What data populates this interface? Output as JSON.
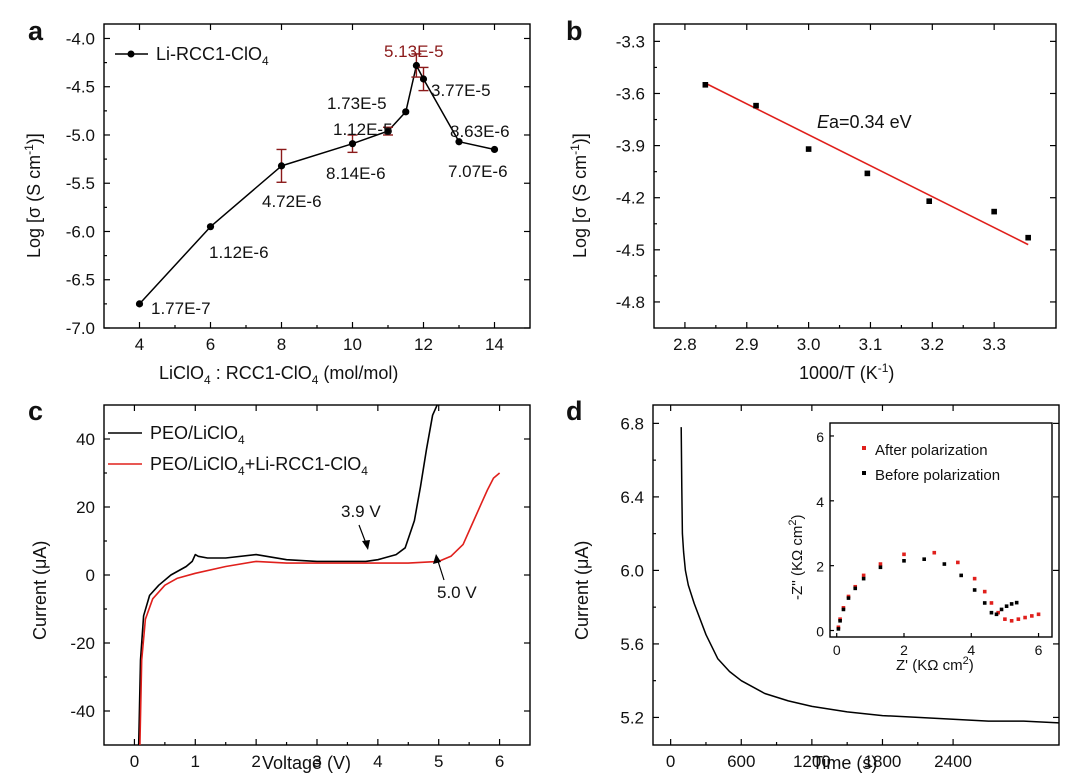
{
  "chart_data": [
    {
      "panel": "a",
      "type": "line",
      "xlabel": "LiClO",
      "xlabel_sub": "4",
      "xlabel_rest": " : RCC1-ClO",
      "xlabel_sub2": "4",
      "xlabel_tail": " (mol/mol)",
      "ylabel": "Log [σ (S cm",
      "ylabel_sup": "-1",
      "ylabel_tail": ")]",
      "xlim": [
        3,
        15
      ],
      "ylim": [
        -7.0,
        -3.85
      ],
      "xticks": [
        4,
        6,
        8,
        10,
        12,
        14
      ],
      "yticks": [
        -7.0,
        -6.5,
        -6.0,
        -5.5,
        -5.0,
        -4.5,
        -4.0
      ],
      "ytick_labels": [
        "-7.0",
        "-6.5",
        "-6.0",
        "-5.5",
        "-5.0",
        "-4.5",
        "-4.0"
      ],
      "legend": "Li-RCC1-ClO",
      "legend_sub": "4",
      "legend_position": "top-left",
      "highlight_color": "#8b1a1a",
      "series": [
        {
          "name": "Li-RCC1-ClO4",
          "x": [
            4,
            6,
            8,
            10,
            11,
            11.5,
            11.8,
            12,
            13,
            14
          ],
          "y": [
            -6.75,
            -5.95,
            -5.32,
            -5.09,
            -4.96,
            -4.76,
            -4.28,
            -4.42,
            -5.07,
            -5.15
          ],
          "errors": [
            0,
            0,
            0.17,
            0.09,
            0.04,
            0,
            0.12,
            0.12,
            0,
            0
          ]
        }
      ],
      "annotations": [
        "1.77E-7",
        "1.12E-6",
        "4.72E-6",
        "8.14E-6",
        "1.12E-5",
        "1.73E-5",
        "5.13E-5",
        "3.77E-5",
        "8.63E-6",
        "7.07E-6"
      ]
    },
    {
      "panel": "b",
      "type": "scatter",
      "xlabel": "1000/T (K",
      "xlabel_sup": "-1",
      "xlabel_tail": ")",
      "ylabel": "Log [σ (S cm",
      "ylabel_sup": "-1",
      "ylabel_tail": ")]",
      "xlim": [
        2.75,
        3.4
      ],
      "ylim": [
        -4.95,
        -3.2
      ],
      "xticks": [
        2.8,
        2.9,
        3.0,
        3.1,
        3.2,
        3.3
      ],
      "xtick_labels": [
        "2.8",
        "2.9",
        "3.0",
        "3.1",
        "3.2",
        "3.3"
      ],
      "yticks": [
        -4.8,
        -4.5,
        -4.2,
        -3.9,
        -3.6,
        -3.3
      ],
      "ytick_labels": [
        "-4.8",
        "-4.5",
        "-4.2",
        "-3.9",
        "-3.6",
        "-3.3"
      ],
      "points": {
        "x": [
          2.833,
          2.915,
          3.0,
          3.095,
          3.195,
          3.3,
          3.355
        ],
        "y": [
          -3.55,
          -3.67,
          -3.92,
          -4.06,
          -4.22,
          -4.28,
          -4.43
        ]
      },
      "fit": {
        "x": [
          2.833,
          3.355
        ],
        "y": [
          -3.54,
          -4.47
        ],
        "color": "#e0201c"
      },
      "annotation_italic": "E",
      "annotation": "a=0.34 eV"
    },
    {
      "panel": "c",
      "type": "line",
      "xlabel": "Voltage (V)",
      "ylabel": "Current (μA)",
      "xlim": [
        -0.5,
        6.5
      ],
      "ylim": [
        -50,
        50
      ],
      "xticks": [
        0,
        1,
        2,
        3,
        4,
        5,
        6
      ],
      "yticks": [
        -40,
        -20,
        0,
        20,
        40
      ],
      "series": [
        {
          "name": "PEO/LiClO4",
          "legend_text": "PEO/LiClO",
          "legend_sub": "4",
          "color": "#000000",
          "x": [
            0.07,
            0.1,
            0.15,
            0.25,
            0.4,
            0.6,
            0.85,
            0.95,
            1.0,
            1.05,
            1.2,
            1.5,
            2.0,
            2.5,
            3.0,
            3.5,
            3.8,
            4.0,
            4.3,
            4.45,
            4.6,
            4.7,
            4.8,
            4.9,
            5.0
          ],
          "y": [
            -50,
            -25,
            -12,
            -6,
            -3,
            0,
            2.5,
            4,
            6,
            5.5,
            5,
            5,
            6,
            4.5,
            4,
            4,
            4,
            4.5,
            6,
            8,
            16,
            26,
            37,
            47,
            51
          ]
        },
        {
          "name": "PEO/LiClO4+Li-RCC1-ClO4",
          "legend_text": "PEO/LiClO",
          "legend_sub": "4",
          "legend_rest": "+Li-RCC1-ClO",
          "legend_sub2": "4",
          "color": "#e0201c",
          "x": [
            0.09,
            0.12,
            0.18,
            0.3,
            0.5,
            0.7,
            1.0,
            1.5,
            2.0,
            2.5,
            3.0,
            3.5,
            4.0,
            4.5,
            5.0,
            5.2,
            5.4,
            5.55,
            5.7,
            5.8,
            5.9,
            6.0
          ],
          "y": [
            -50,
            -25,
            -13,
            -7,
            -3,
            -1,
            0.5,
            2.5,
            4,
            3.5,
            3.5,
            3.5,
            3.5,
            3.5,
            4,
            5.5,
            9,
            15,
            21,
            25,
            28.5,
            30
          ]
        }
      ],
      "annotations": [
        "3.9 V",
        "5.0 V"
      ],
      "legend_position": "top-left"
    },
    {
      "panel": "d",
      "type": "line",
      "xlabel": "Time (s)",
      "ylabel": "Current (μA)",
      "xlim": [
        -150,
        3300
      ],
      "ylim": [
        5.05,
        6.9
      ],
      "xticks": [
        0,
        600,
        1200,
        1800,
        2400
      ],
      "yticks": [
        5.2,
        5.6,
        6.0,
        6.4,
        6.8
      ],
      "ytick_labels": [
        "5.2",
        "5.6",
        "6.0",
        "6.4",
        "6.8"
      ],
      "series": [
        {
          "name": "current",
          "color": "#000000",
          "x": [
            90,
            95,
            100,
            110,
            125,
            150,
            200,
            300,
            400,
            500,
            600,
            800,
            1000,
            1200,
            1500,
            1800,
            2100,
            2400,
            2700,
            3000,
            3300
          ],
          "y": [
            6.78,
            6.45,
            6.2,
            6.1,
            6.0,
            5.92,
            5.82,
            5.65,
            5.52,
            5.45,
            5.4,
            5.33,
            5.29,
            5.26,
            5.23,
            5.21,
            5.2,
            5.19,
            5.18,
            5.18,
            5.17
          ]
        }
      ],
      "inset": {
        "type": "scatter",
        "xlabel": "Z' (KΩ cm",
        "xlabel_sup": "2",
        "xlabel_tail": ")",
        "ylabel": "-Z'' (KΩ cm",
        "ylabel_sup": "2",
        "ylabel_tail": ")",
        "xlim": [
          -0.2,
          6.4
        ],
        "ylim": [
          -0.2,
          6.4
        ],
        "xticks": [
          0,
          2,
          4,
          6
        ],
        "yticks": [
          0,
          2,
          4,
          6
        ],
        "series": [
          {
            "name": "After polarization",
            "color": "#e0201c",
            "x": [
              0.05,
              0.1,
              0.2,
              0.35,
              0.55,
              0.8,
              1.3,
              2.0,
              2.9,
              3.6,
              4.1,
              4.4,
              4.6,
              4.8,
              5.0,
              5.2,
              5.4,
              5.6,
              5.8,
              6.0
            ],
            "y": [
              0.1,
              0.35,
              0.7,
              1.05,
              1.35,
              1.7,
              2.05,
              2.35,
              2.4,
              2.1,
              1.6,
              1.2,
              0.85,
              0.55,
              0.35,
              0.3,
              0.35,
              0.4,
              0.45,
              0.5
            ]
          },
          {
            "name": "Before polarization",
            "color": "#000000",
            "x": [
              0.05,
              0.1,
              0.2,
              0.35,
              0.55,
              0.8,
              1.3,
              2.0,
              2.6,
              3.2,
              3.7,
              4.1,
              4.4,
              4.6,
              4.75,
              4.9,
              5.05,
              5.2,
              5.35
            ],
            "y": [
              0.05,
              0.3,
              0.65,
              1.0,
              1.3,
              1.6,
              1.95,
              2.15,
              2.2,
              2.05,
              1.7,
              1.25,
              0.85,
              0.55,
              0.5,
              0.65,
              0.75,
              0.82,
              0.86
            ]
          }
        ]
      }
    }
  ]
}
